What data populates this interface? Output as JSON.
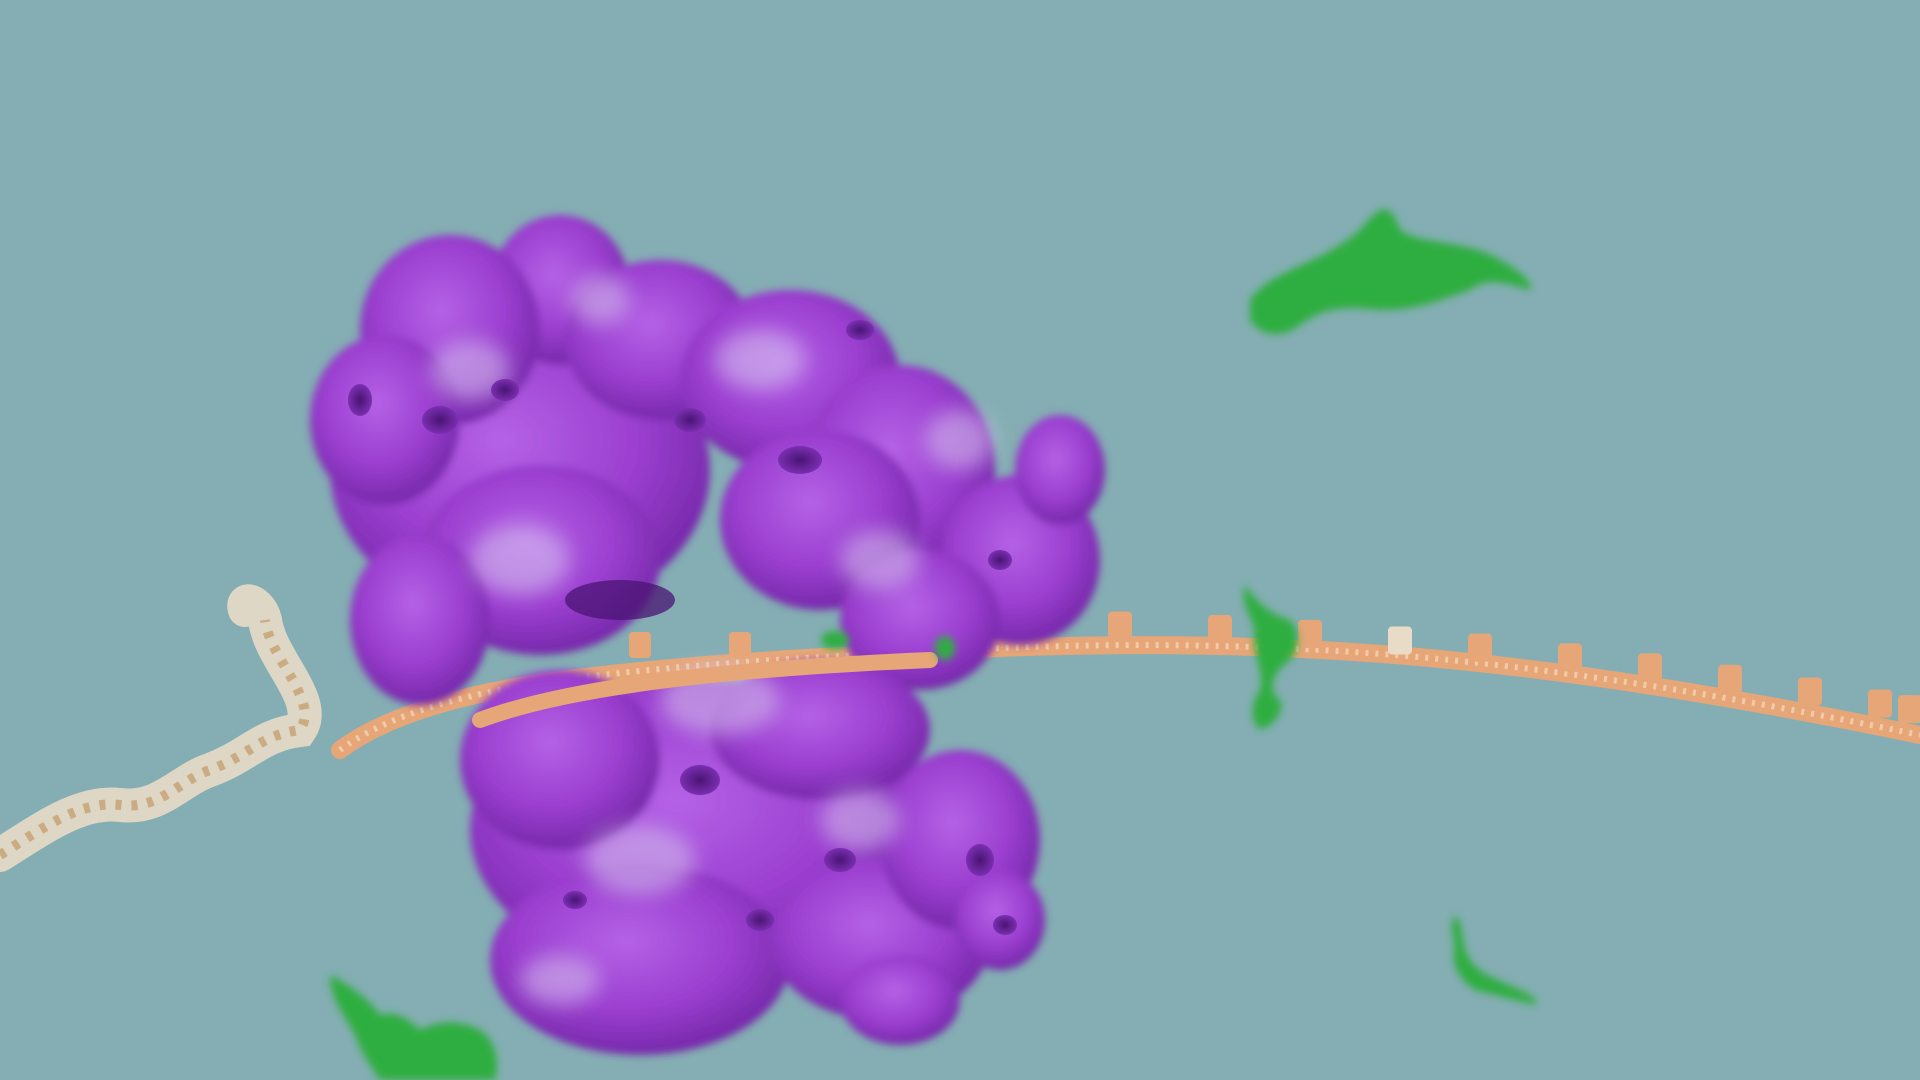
{
  "scene": {
    "background_color": "#84aeb3",
    "objects": [
      {
        "name": "complex",
        "icon": "purple-protein-complex",
        "color": "#9b3fd0",
        "highlight": "#c9b3ea"
      },
      {
        "name": "strand",
        "icon": "nucleic-acid-strand",
        "color": "#e6a677",
        "pale": "#e8dcc8"
      },
      {
        "name": "molecules",
        "icon": "green-molecule",
        "color": "#2fae3f",
        "dark": "#1f8a30"
      }
    ]
  }
}
